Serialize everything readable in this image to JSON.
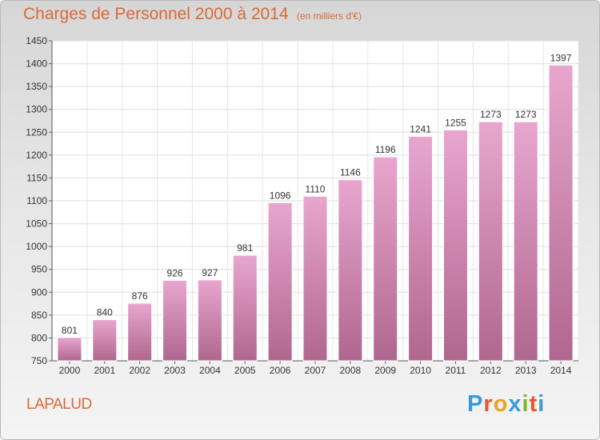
{
  "chart_data": {
    "type": "bar",
    "title": "Charges de Personnel 2000 à 2014",
    "subtitle": "(en milliers d'€)",
    "categories": [
      "2000",
      "2001",
      "2002",
      "2003",
      "2004",
      "2005",
      "2006",
      "2007",
      "2008",
      "2009",
      "2010",
      "2011",
      "2012",
      "2013",
      "2014"
    ],
    "values": [
      801,
      840,
      876,
      926,
      927,
      981,
      1096,
      1110,
      1146,
      1196,
      1241,
      1255,
      1273,
      1273,
      1397
    ],
    "ylim": [
      750,
      1450
    ],
    "yticks": [
      750,
      800,
      850,
      900,
      950,
      1000,
      1050,
      1100,
      1150,
      1200,
      1250,
      1300,
      1350,
      1400,
      1450
    ],
    "grid": true,
    "bar_color_top": "#e8a6cf",
    "bar_color_bottom": "#b0678f"
  },
  "footer": {
    "place": "LAPALUD",
    "logo": "Proxiti",
    "logo_colors": [
      "#3a9ad9",
      "#e8562a",
      "#f0a020",
      "#3a9ad9",
      "#7ab42e",
      "#e8562a",
      "#3a9ad9"
    ]
  }
}
